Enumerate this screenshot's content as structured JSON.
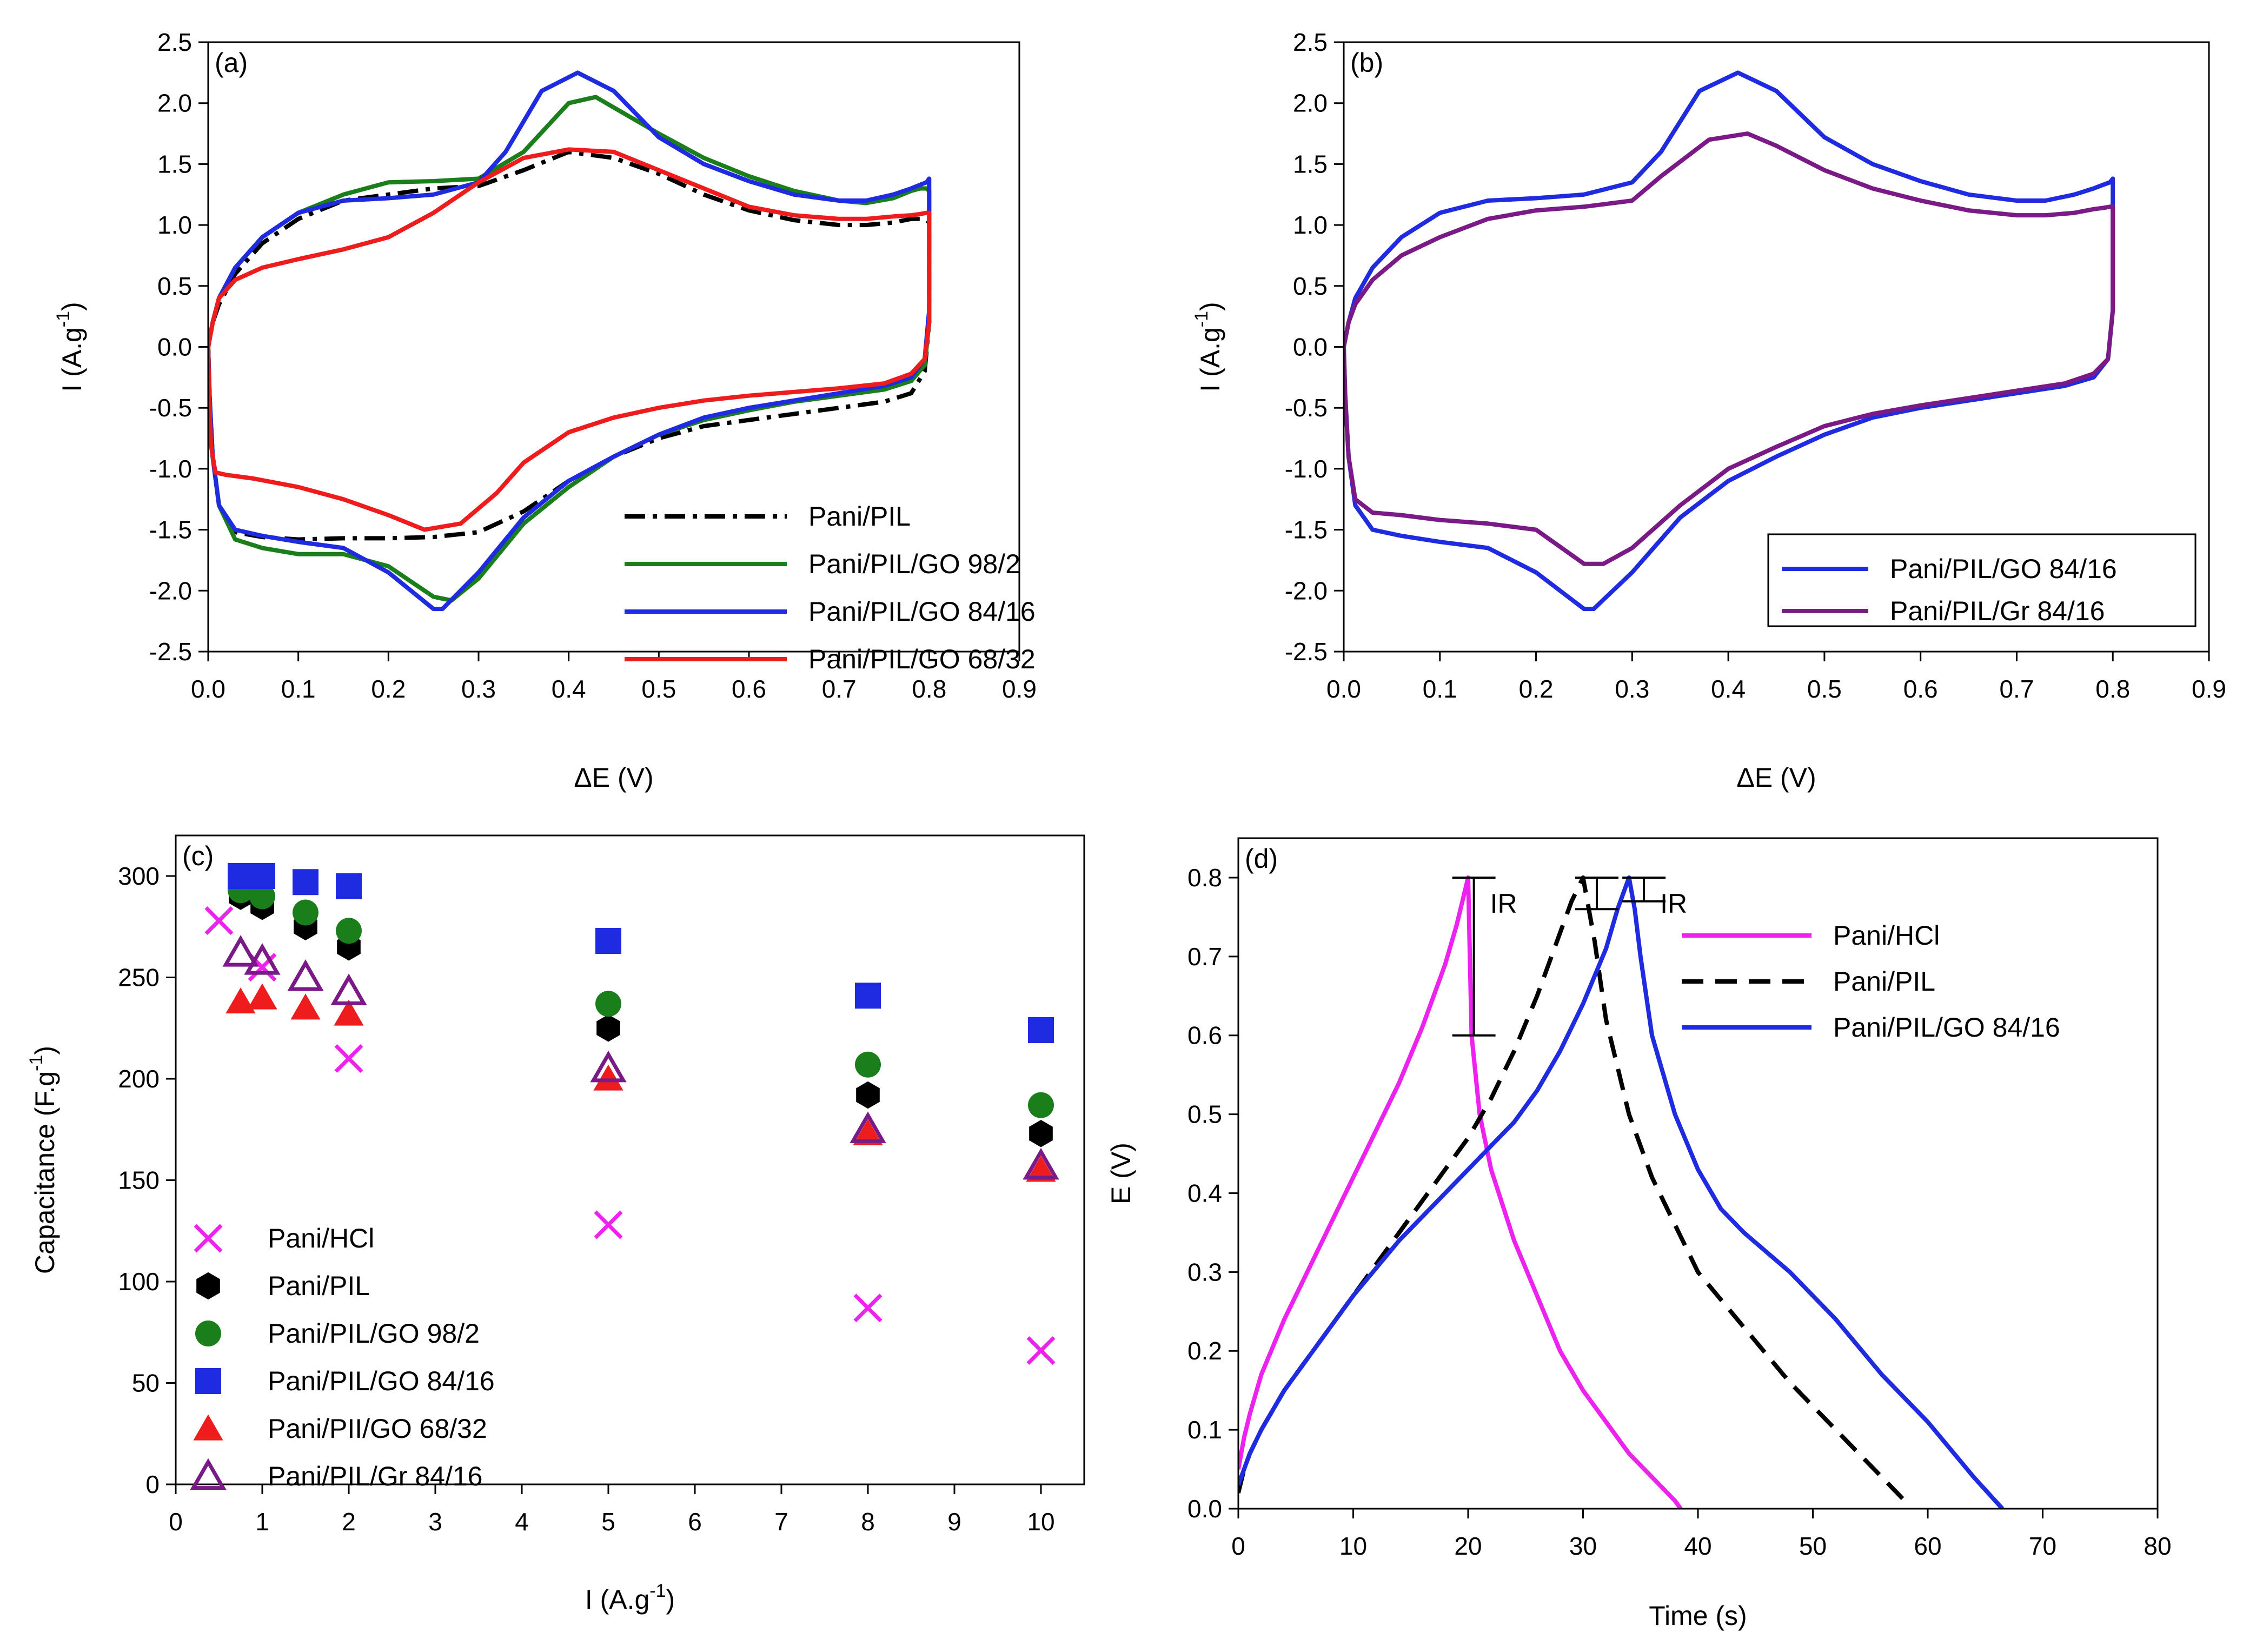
{
  "chart_data": [
    {
      "id": "a",
      "type": "line",
      "panel_label": "(a)",
      "xlabel": "ΔE (V)",
      "ylabel": "I (A.g",
      "ylabel_sup": "-1",
      "ylabel_close": ")",
      "xlim": [
        0,
        0.9
      ],
      "ylim": [
        -2.5,
        2.5
      ],
      "x_ticks": [
        "0.0",
        "0.1",
        "0.2",
        "0.3",
        "0.4",
        "0.5",
        "0.6",
        "0.7",
        "0.8",
        "0.9"
      ],
      "y_ticks": [
        "2.5",
        "2.0",
        "1.5",
        "1.0",
        "0.5",
        "0.0",
        "-0.5",
        "-1.0",
        "-1.5",
        "-2.0",
        "-2.5"
      ],
      "legend_position": "bottom-right",
      "series": [
        {
          "name": "Pani/PIL",
          "color": "#000000",
          "dash": "dashdot",
          "x": [
            0,
            0.0015,
            0.005,
            0.012,
            0.03,
            0.06,
            0.1,
            0.15,
            0.2,
            0.25,
            0.3,
            0.35,
            0.4,
            0.45,
            0.5,
            0.55,
            0.6,
            0.65,
            0.7,
            0.75,
            0.78,
            0.795,
            0.8,
            0.8,
            0.797,
            0.79,
            0.78,
            0.76,
            0.73,
            0.7,
            0.65,
            0.6,
            0.55,
            0.5,
            0.45,
            0.4,
            0.35,
            0.3,
            0.25,
            0.2,
            0.15,
            0.1,
            0.06,
            0.03,
            0.012,
            0.005,
            0
          ],
          "y": [
            0,
            -0.4,
            -0.9,
            -1.3,
            -1.52,
            -1.56,
            -1.58,
            -1.57,
            -1.57,
            -1.56,
            -1.52,
            -1.35,
            -1.1,
            -0.9,
            -0.75,
            -0.65,
            -0.6,
            -0.55,
            -0.5,
            -0.45,
            -0.38,
            -0.2,
            0.2,
            1.02,
            1.04,
            1.05,
            1.05,
            1.02,
            1.0,
            1.0,
            1.04,
            1.12,
            1.25,
            1.42,
            1.55,
            1.6,
            1.45,
            1.32,
            1.3,
            1.25,
            1.2,
            1.05,
            0.85,
            0.6,
            0.35,
            0.2,
            0
          ]
        },
        {
          "name": "Pani/PIL/GO 98/2",
          "color": "#1a7f1a",
          "dash": "solid",
          "x": [
            0,
            0.0015,
            0.005,
            0.012,
            0.03,
            0.06,
            0.1,
            0.15,
            0.2,
            0.25,
            0.27,
            0.3,
            0.35,
            0.4,
            0.45,
            0.5,
            0.55,
            0.6,
            0.65,
            0.7,
            0.75,
            0.78,
            0.795,
            0.8,
            0.8,
            0.797,
            0.79,
            0.78,
            0.76,
            0.73,
            0.7,
            0.65,
            0.6,
            0.55,
            0.5,
            0.43,
            0.4,
            0.35,
            0.3,
            0.25,
            0.2,
            0.15,
            0.1,
            0.06,
            0.03,
            0.012,
            0.005,
            0
          ],
          "y": [
            0,
            -0.4,
            -0.9,
            -1.3,
            -1.58,
            -1.65,
            -1.7,
            -1.7,
            -1.8,
            -2.05,
            -2.08,
            -1.9,
            -1.45,
            -1.15,
            -0.9,
            -0.72,
            -0.6,
            -0.52,
            -0.45,
            -0.4,
            -0.35,
            -0.28,
            -0.15,
            0.2,
            1.28,
            1.3,
            1.3,
            1.28,
            1.22,
            1.18,
            1.2,
            1.28,
            1.4,
            1.55,
            1.75,
            2.05,
            2.0,
            1.6,
            1.38,
            1.36,
            1.35,
            1.25,
            1.1,
            0.9,
            0.65,
            0.4,
            0.2,
            0
          ]
        },
        {
          "name": "Pani/PIL/GO 84/16",
          "color": "#1f2be0",
          "dash": "solid",
          "x": [
            0,
            0.0015,
            0.005,
            0.012,
            0.03,
            0.06,
            0.1,
            0.15,
            0.2,
            0.25,
            0.26,
            0.3,
            0.35,
            0.4,
            0.45,
            0.5,
            0.55,
            0.6,
            0.65,
            0.7,
            0.75,
            0.78,
            0.795,
            0.8,
            0.8,
            0.797,
            0.79,
            0.78,
            0.76,
            0.73,
            0.7,
            0.65,
            0.6,
            0.55,
            0.5,
            0.45,
            0.41,
            0.37,
            0.33,
            0.3,
            0.25,
            0.2,
            0.15,
            0.1,
            0.06,
            0.03,
            0.012,
            0.005,
            0
          ],
          "y": [
            0,
            -0.4,
            -0.9,
            -1.3,
            -1.5,
            -1.55,
            -1.6,
            -1.65,
            -1.85,
            -2.15,
            -2.15,
            -1.85,
            -1.4,
            -1.1,
            -0.9,
            -0.72,
            -0.58,
            -0.5,
            -0.44,
            -0.38,
            -0.32,
            -0.25,
            -0.1,
            0.3,
            1.38,
            1.35,
            1.33,
            1.3,
            1.25,
            1.2,
            1.2,
            1.25,
            1.36,
            1.5,
            1.72,
            2.1,
            2.25,
            2.1,
            1.6,
            1.35,
            1.25,
            1.22,
            1.2,
            1.1,
            0.9,
            0.65,
            0.4,
            0.2,
            0
          ]
        },
        {
          "name": "Pani/PIL/GO 68/32",
          "color": "#ee1c1c",
          "dash": "solid",
          "x": [
            0,
            0.001,
            0.003,
            0.008,
            0.02,
            0.05,
            0.1,
            0.15,
            0.2,
            0.24,
            0.28,
            0.32,
            0.35,
            0.4,
            0.45,
            0.5,
            0.55,
            0.6,
            0.65,
            0.7,
            0.75,
            0.78,
            0.795,
            0.8,
            0.8,
            0.797,
            0.79,
            0.78,
            0.76,
            0.73,
            0.7,
            0.65,
            0.6,
            0.55,
            0.5,
            0.45,
            0.4,
            0.35,
            0.3,
            0.25,
            0.2,
            0.15,
            0.1,
            0.06,
            0.03,
            0.012,
            0.005,
            0
          ],
          "y": [
            0,
            -0.4,
            -0.8,
            -1.03,
            -1.05,
            -1.08,
            -1.15,
            -1.25,
            -1.38,
            -1.5,
            -1.45,
            -1.2,
            -0.95,
            -0.7,
            -0.58,
            -0.5,
            -0.44,
            -0.4,
            -0.37,
            -0.34,
            -0.3,
            -0.22,
            -0.1,
            0.2,
            1.1,
            1.1,
            1.09,
            1.08,
            1.07,
            1.05,
            1.05,
            1.08,
            1.15,
            1.3,
            1.45,
            1.6,
            1.62,
            1.55,
            1.35,
            1.1,
            0.9,
            0.8,
            0.72,
            0.65,
            0.55,
            0.4,
            0.2,
            0
          ]
        }
      ]
    },
    {
      "id": "b",
      "type": "line",
      "panel_label": "(b)",
      "xlabel": "ΔE (V)",
      "ylabel": "I (A.g",
      "ylabel_sup": "-1",
      "ylabel_close": ")",
      "xlim": [
        0,
        0.9
      ],
      "ylim": [
        -2.5,
        2.5
      ],
      "x_ticks": [
        "0.0",
        "0.1",
        "0.2",
        "0.3",
        "0.4",
        "0.5",
        "0.6",
        "0.7",
        "0.8",
        "0.9"
      ],
      "y_ticks": [
        "2.5",
        "2.0",
        "1.5",
        "1.0",
        "0.5",
        "0.0",
        "-0.5",
        "-1.0",
        "-1.5",
        "-2.0",
        "-2.5"
      ],
      "legend_position": "bottom-right",
      "series": [
        {
          "name": "Pani/PIL/GO 84/16",
          "color": "#1f2be0",
          "dash": "solid",
          "x": [
            0,
            0.0015,
            0.005,
            0.012,
            0.03,
            0.06,
            0.1,
            0.15,
            0.2,
            0.25,
            0.26,
            0.3,
            0.35,
            0.4,
            0.45,
            0.5,
            0.55,
            0.6,
            0.65,
            0.7,
            0.75,
            0.78,
            0.795,
            0.8,
            0.8,
            0.797,
            0.79,
            0.78,
            0.76,
            0.73,
            0.7,
            0.65,
            0.6,
            0.55,
            0.5,
            0.45,
            0.41,
            0.37,
            0.33,
            0.3,
            0.25,
            0.2,
            0.15,
            0.1,
            0.06,
            0.03,
            0.012,
            0.005,
            0
          ],
          "y": [
            0,
            -0.4,
            -0.9,
            -1.3,
            -1.5,
            -1.55,
            -1.6,
            -1.65,
            -1.85,
            -2.15,
            -2.15,
            -1.85,
            -1.4,
            -1.1,
            -0.9,
            -0.72,
            -0.58,
            -0.5,
            -0.44,
            -0.38,
            -0.32,
            -0.25,
            -0.1,
            0.3,
            1.38,
            1.35,
            1.33,
            1.3,
            1.25,
            1.2,
            1.2,
            1.25,
            1.36,
            1.5,
            1.72,
            2.1,
            2.25,
            2.1,
            1.6,
            1.35,
            1.25,
            1.22,
            1.2,
            1.1,
            0.9,
            0.65,
            0.4,
            0.2,
            0
          ]
        },
        {
          "name": "Pani/PIL/Gr 84/16",
          "color": "#7a1a86",
          "dash": "solid",
          "x": [
            0,
            0.0015,
            0.005,
            0.012,
            0.03,
            0.06,
            0.1,
            0.15,
            0.2,
            0.25,
            0.27,
            0.3,
            0.35,
            0.4,
            0.45,
            0.5,
            0.55,
            0.6,
            0.65,
            0.7,
            0.75,
            0.78,
            0.795,
            0.8,
            0.8,
            0.797,
            0.79,
            0.78,
            0.76,
            0.73,
            0.7,
            0.65,
            0.6,
            0.55,
            0.5,
            0.45,
            0.42,
            0.38,
            0.33,
            0.3,
            0.25,
            0.2,
            0.15,
            0.1,
            0.06,
            0.03,
            0.012,
            0.005,
            0
          ],
          "y": [
            0,
            -0.4,
            -0.9,
            -1.25,
            -1.36,
            -1.38,
            -1.42,
            -1.45,
            -1.5,
            -1.78,
            -1.78,
            -1.65,
            -1.3,
            -1.0,
            -0.82,
            -0.65,
            -0.55,
            -0.48,
            -0.42,
            -0.36,
            -0.3,
            -0.22,
            -0.1,
            0.3,
            1.15,
            1.15,
            1.14,
            1.13,
            1.1,
            1.08,
            1.08,
            1.12,
            1.2,
            1.3,
            1.45,
            1.65,
            1.75,
            1.7,
            1.4,
            1.2,
            1.15,
            1.12,
            1.05,
            0.9,
            0.75,
            0.55,
            0.35,
            0.2,
            0
          ]
        }
      ]
    },
    {
      "id": "c",
      "type": "scatter",
      "panel_label": "(c)",
      "xlabel": "I (A.g",
      "xlabel_sup": "-1",
      "xlabel_close": ")",
      "ylabel": "Capacitance (F.g",
      "ylabel_sup": "-1",
      "ylabel_close": ")",
      "xlim": [
        0,
        10.5
      ],
      "ylim": [
        0,
        320
      ],
      "x_ticks": [
        "0",
        "1",
        "2",
        "3",
        "4",
        "5",
        "6",
        "7",
        "8",
        "9",
        "10"
      ],
      "y_ticks": [
        "300",
        "250",
        "200",
        "150",
        "100",
        "50",
        "0"
      ],
      "legend_position": "bottom-left",
      "series": [
        {
          "name": "Pani/HCl",
          "color": "#ee22ee",
          "marker": "x",
          "x": [
            0.5,
            1,
            2,
            5,
            8,
            10
          ],
          "y": [
            278,
            255,
            210,
            128,
            87,
            66
          ]
        },
        {
          "name": "Pani/PIL",
          "color": "#000000",
          "marker": "hexagon",
          "x": [
            0.75,
            1,
            1.5,
            2,
            5,
            8,
            10
          ],
          "y": [
            290,
            285,
            275,
            265,
            225,
            192,
            173
          ]
        },
        {
          "name": "Pani/PIL/GO 98/2",
          "color": "#1a7f1a",
          "marker": "circle",
          "x": [
            0.75,
            1,
            1.5,
            2,
            5,
            8,
            10
          ],
          "y": [
            293,
            290,
            282,
            273,
            237,
            207,
            187
          ]
        },
        {
          "name": "Pani/PIL/GO 84/16",
          "color": "#1f2be0",
          "marker": "square",
          "x": [
            0.75,
            1,
            1.5,
            2,
            5,
            8,
            10
          ],
          "y": [
            300,
            300,
            297,
            295,
            268,
            241,
            224
          ]
        },
        {
          "name": "Pani/PII/GO 68/32",
          "color": "#ee1c1c",
          "marker": "triangle",
          "x": [
            0.75,
            1,
            1.5,
            2,
            5,
            8,
            10
          ],
          "y": [
            238,
            240,
            235,
            232,
            200,
            173,
            155
          ]
        },
        {
          "name": "Pani/PIL/Gr 84/16",
          "color": "#7a1a86",
          "marker": "triangle-open",
          "x": [
            0.75,
            1,
            1.5,
            2,
            5,
            8,
            10
          ],
          "y": [
            262,
            258,
            250,
            243,
            205,
            175,
            157
          ]
        }
      ]
    },
    {
      "id": "d",
      "type": "line",
      "panel_label": "(d)",
      "xlabel": "Time (s)",
      "ylabel": "E (V)",
      "xlim": [
        0,
        80
      ],
      "ylim": [
        0,
        0.85
      ],
      "x_ticks": [
        "0",
        "10",
        "20",
        "30",
        "40",
        "50",
        "60",
        "70",
        "80"
      ],
      "y_ticks": [
        "0.8",
        "0.7",
        "0.6",
        "0.5",
        "0.4",
        "0.3",
        "0.2",
        "0.1",
        "0.0"
      ],
      "legend_position": "top-right",
      "annotations": [
        "IR",
        "IR"
      ],
      "series": [
        {
          "name": "Pani/HCl",
          "color": "#ee22ee",
          "dash": "solid",
          "x": [
            0,
            0.5,
            1,
            2,
            4,
            6,
            8,
            10,
            12,
            14,
            16,
            18,
            19,
            20,
            20.3,
            21,
            22,
            24,
            26,
            28,
            30,
            32,
            34,
            36,
            38,
            38.5
          ],
          "y": [
            0.05,
            0.09,
            0.12,
            0.17,
            0.24,
            0.3,
            0.36,
            0.42,
            0.48,
            0.54,
            0.61,
            0.69,
            0.74,
            0.8,
            0.6,
            0.5,
            0.43,
            0.34,
            0.27,
            0.2,
            0.15,
            0.11,
            0.07,
            0.04,
            0.01,
            0.0
          ]
        },
        {
          "name": "Pani/PIL",
          "color": "#000000",
          "dash": "dashed",
          "x": [
            0,
            0.5,
            1,
            2,
            4,
            6,
            10,
            14,
            18,
            20,
            22,
            24,
            26,
            28,
            29,
            30,
            31,
            32,
            34,
            36,
            38,
            40,
            44,
            48,
            52,
            56,
            58
          ],
          "y": [
            0.02,
            0.05,
            0.07,
            0.1,
            0.15,
            0.19,
            0.27,
            0.35,
            0.43,
            0.47,
            0.52,
            0.58,
            0.65,
            0.73,
            0.77,
            0.8,
            0.72,
            0.62,
            0.5,
            0.42,
            0.36,
            0.3,
            0.23,
            0.16,
            0.1,
            0.04,
            0.01
          ]
        },
        {
          "name": "Pani/PIL/GO 84/16",
          "color": "#1f2be0",
          "dash": "solid",
          "x": [
            0,
            0.5,
            1,
            2,
            4,
            6,
            10,
            14,
            18,
            20,
            22,
            24,
            26,
            28,
            30,
            32,
            33,
            34,
            34.5,
            35,
            36,
            38,
            40,
            42,
            44,
            48,
            52,
            56,
            60,
            64,
            66.5
          ],
          "y": [
            0.03,
            0.05,
            0.07,
            0.1,
            0.15,
            0.19,
            0.27,
            0.34,
            0.4,
            0.43,
            0.46,
            0.49,
            0.53,
            0.58,
            0.64,
            0.71,
            0.76,
            0.8,
            0.76,
            0.7,
            0.6,
            0.5,
            0.43,
            0.38,
            0.35,
            0.3,
            0.24,
            0.17,
            0.11,
            0.04,
            0.0
          ]
        }
      ]
    }
  ]
}
